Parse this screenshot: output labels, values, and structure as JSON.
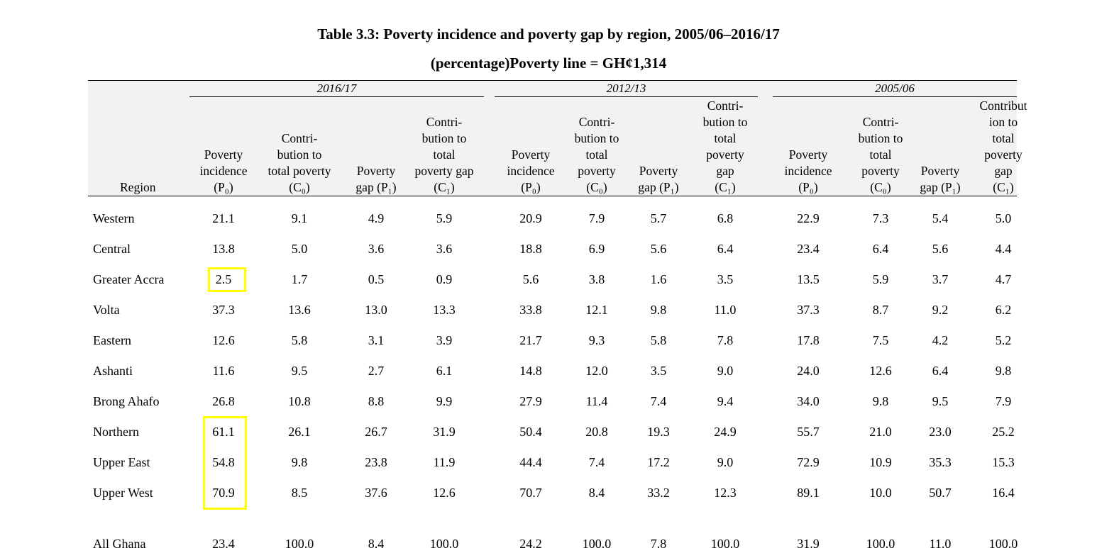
{
  "document": {
    "title_line1": "Table 3.3: Poverty incidence and poverty gap by region, 2005/06–2016/17",
    "title_line2": "(percentage)Poverty line = GH¢1,314"
  },
  "table": {
    "region_header": "Region",
    "periods": [
      "2016/17",
      "2012/13",
      "2005/06"
    ],
    "column_headers": [
      "Poverty\nincidence\n(P₀)",
      "Contri-\nbution to\ntotal poverty\n(C₀)",
      "Poverty\ngap (P₁)",
      "Contri-\nbution to\ntotal\npoverty gap\n(C₁)",
      "Poverty\nincidence\n(P₀)",
      "Contri-\nbution to\ntotal\npoverty\n(C₀)",
      "Poverty\ngap (P₁)",
      "Contri-\nbution to\ntotal\npoverty\ngap\n(C₁)",
      "Poverty\nincidence\n(P₀)",
      "Contri-\nbution to\ntotal\npoverty\n(C₀)",
      "Poverty\ngap (P₁)",
      "Contribut\nion to\ntotal\npoverty\ngap\n(C₁)"
    ],
    "rows": [
      {
        "region": "Western",
        "values": [
          "21.1",
          "9.1",
          "4.9",
          "5.9",
          "20.9",
          "7.9",
          "5.7",
          "6.8",
          "22.9",
          "7.3",
          "5.4",
          "5.0"
        ]
      },
      {
        "region": "Central",
        "values": [
          "13.8",
          "5.0",
          "3.6",
          "3.6",
          "18.8",
          "6.9",
          "5.6",
          "6.4",
          "23.4",
          "6.4",
          "5.6",
          "4.4"
        ]
      },
      {
        "region": "Greater Accra",
        "values": [
          "2.5",
          "1.7",
          "0.5",
          "0.9",
          "5.6",
          "3.8",
          "1.6",
          "3.5",
          "13.5",
          "5.9",
          "3.7",
          "4.7"
        ]
      },
      {
        "region": "Volta",
        "values": [
          "37.3",
          "13.6",
          "13.0",
          "13.3",
          "33.8",
          "12.1",
          "9.8",
          "11.0",
          "37.3",
          "8.7",
          "9.2",
          "6.2"
        ]
      },
      {
        "region": "Eastern",
        "values": [
          "12.6",
          "5.8",
          "3.1",
          "3.9",
          "21.7",
          "9.3",
          "5.8",
          "7.8",
          "17.8",
          "7.5",
          "4.2",
          "5.2"
        ]
      },
      {
        "region": "Ashanti",
        "values": [
          "11.6",
          "9.5",
          "2.7",
          "6.1",
          "14.8",
          "12.0",
          "3.5",
          "9.0",
          "24.0",
          "12.6",
          "6.4",
          "9.8"
        ]
      },
      {
        "region": "Brong Ahafo",
        "values": [
          "26.8",
          "10.8",
          "8.8",
          "9.9",
          "27.9",
          "11.4",
          "7.4",
          "9.4",
          "34.0",
          "9.8",
          "9.5",
          "7.9"
        ]
      },
      {
        "region": "Northern",
        "values": [
          "61.1",
          "26.1",
          "26.7",
          "31.9",
          "50.4",
          "20.8",
          "19.3",
          "24.9",
          "55.7",
          "21.0",
          "23.0",
          "25.2"
        ]
      },
      {
        "region": "Upper East",
        "values": [
          "54.8",
          "9.8",
          "23.8",
          "11.9",
          "44.4",
          "7.4",
          "17.2",
          "9.0",
          "72.9",
          "10.9",
          "35.3",
          "15.3"
        ]
      },
      {
        "region": "Upper West",
        "values": [
          "70.9",
          "8.5",
          "37.6",
          "12.6",
          "70.7",
          "8.4",
          "33.2",
          "12.3",
          "89.1",
          "10.0",
          "50.7",
          "16.4"
        ]
      },
      {
        "region": "All Ghana",
        "values": [
          "23.4",
          "100.0",
          "8.4",
          "100.0",
          "24.2",
          "100.0",
          "7.8",
          "100.0",
          "31.9",
          "100.0",
          "11.0",
          "100.0"
        ]
      }
    ]
  },
  "highlight_color": "#ffff00"
}
